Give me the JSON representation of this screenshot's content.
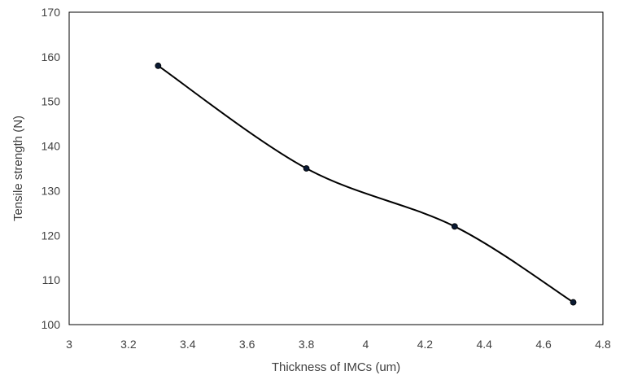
{
  "chart_data": {
    "type": "line",
    "title": "",
    "xlabel": "Thickness of IMCs (um)",
    "ylabel": "Tensile strength (N)",
    "xlim": [
      3,
      4.8
    ],
    "ylim": [
      100,
      170
    ],
    "x_ticks": [
      "3",
      "3.2",
      "3.4",
      "3.6",
      "3.8",
      "4",
      "4.2",
      "4.4",
      "4.6",
      "4.8"
    ],
    "y_ticks": [
      "100",
      "110",
      "120",
      "130",
      "140",
      "150",
      "160",
      "170"
    ],
    "grid": false,
    "smooth": true,
    "legend": "none",
    "series": [
      {
        "color": "#000000",
        "marker_color": "#0a1a33",
        "x": [
          3.3,
          3.8,
          4.3,
          4.7
        ],
        "y": [
          158,
          135,
          122,
          105
        ]
      }
    ]
  }
}
